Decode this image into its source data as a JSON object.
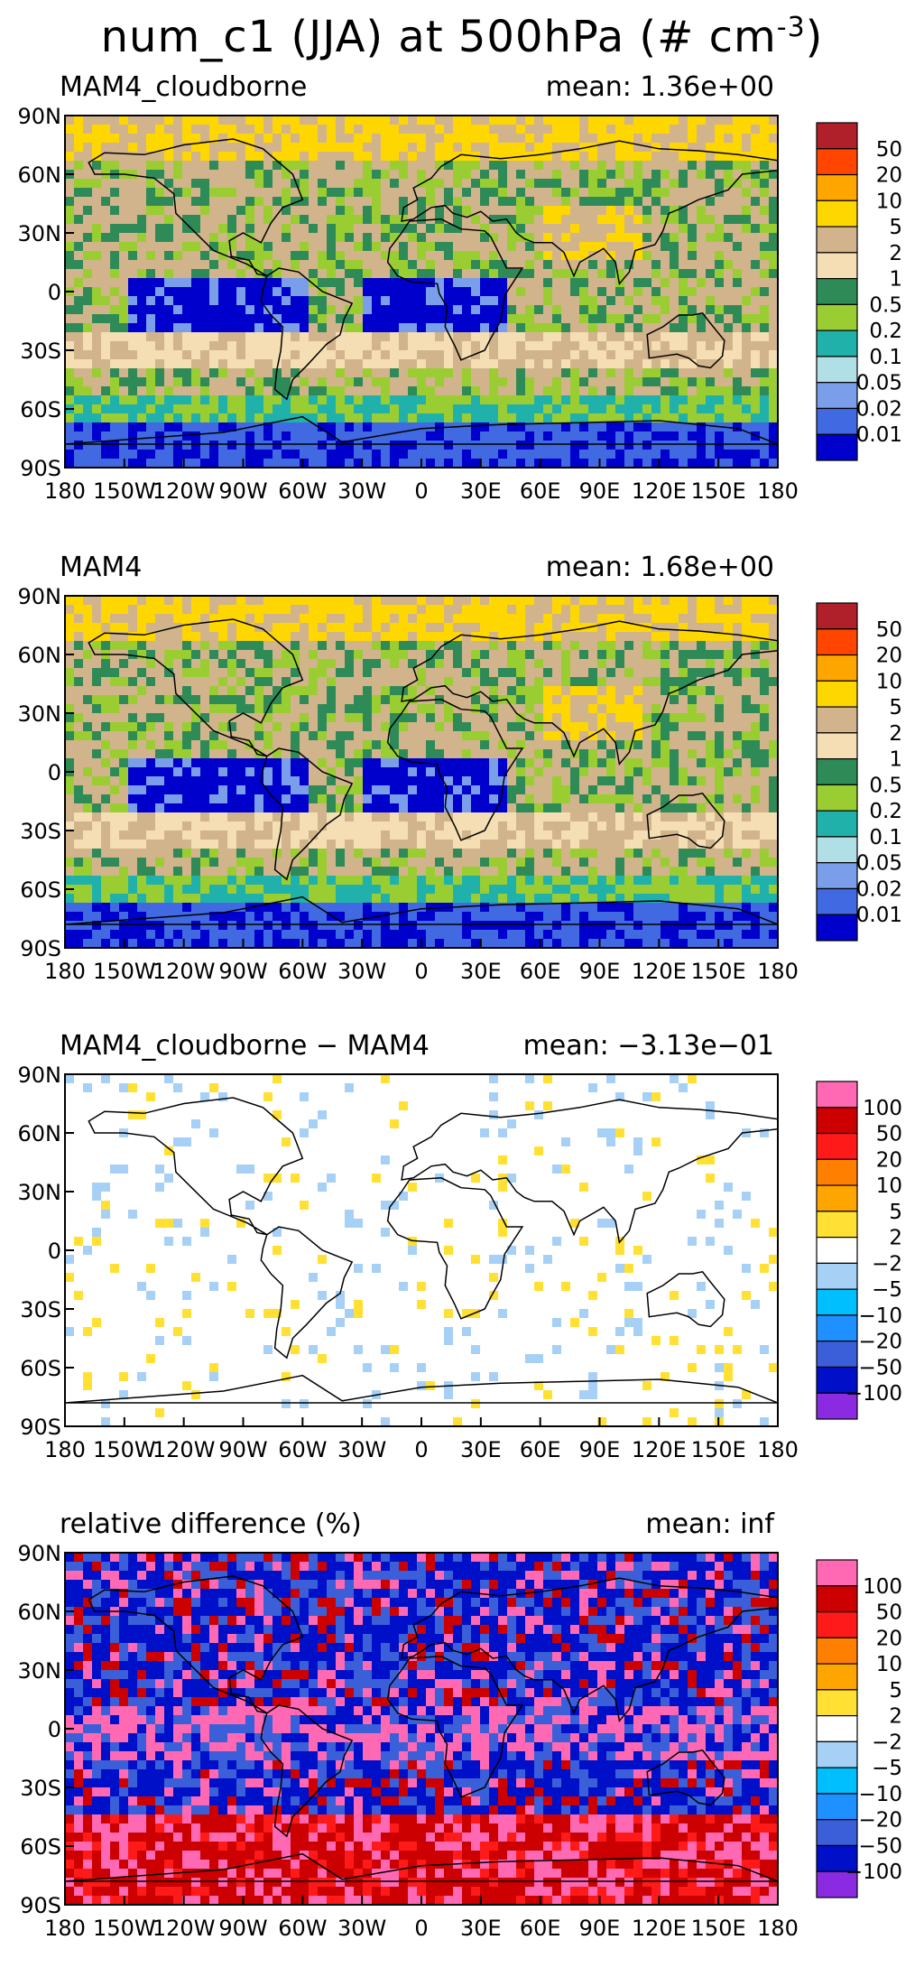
{
  "title": "num_c1 (JJA) at 500hPa (# cm",
  "title_sup": "-3",
  "title_end": ")",
  "chart_data": [
    {
      "type": "heatmap",
      "title": "MAM4_cloudborne",
      "mean_label": "mean:  1.36e+00",
      "yticks": [
        "90N",
        "60N",
        "30N",
        "0",
        "30S",
        "60S",
        "90S"
      ],
      "xticks": [
        "180",
        "150W",
        "120W",
        "90W",
        "60W",
        "30W",
        "0",
        "30E",
        "60E",
        "90E",
        "120E",
        "150E",
        "180"
      ],
      "colorbar_labels": [
        "50",
        "20",
        "10",
        "5",
        "2",
        "1",
        "0.5",
        "0.2",
        "0.1",
        "0.05",
        "0.02",
        "0.01"
      ],
      "colorbar_colors": [
        "#b0202a",
        "#ff4500",
        "#ffa500",
        "#ffd700",
        "#d2b48c",
        "#f5deb3",
        "#2e8b57",
        "#9acd32",
        "#20b2aa",
        "#b0e0e6",
        "#7b9eea",
        "#4169e1",
        "#0000cd"
      ],
      "grid": false
    },
    {
      "type": "heatmap",
      "title": "MAM4",
      "mean_label": "mean:  1.68e+00",
      "yticks": [
        "90N",
        "60N",
        "30N",
        "0",
        "30S",
        "60S",
        "90S"
      ],
      "xticks": [
        "180",
        "150W",
        "120W",
        "90W",
        "60W",
        "30W",
        "0",
        "30E",
        "60E",
        "90E",
        "120E",
        "150E",
        "180"
      ],
      "colorbar_labels": [
        "50",
        "20",
        "10",
        "5",
        "2",
        "1",
        "0.5",
        "0.2",
        "0.1",
        "0.05",
        "0.02",
        "0.01"
      ],
      "colorbar_colors": [
        "#b0202a",
        "#ff4500",
        "#ffa500",
        "#ffd700",
        "#d2b48c",
        "#f5deb3",
        "#2e8b57",
        "#9acd32",
        "#20b2aa",
        "#b0e0e6",
        "#7b9eea",
        "#4169e1",
        "#0000cd"
      ],
      "grid": false
    },
    {
      "type": "heatmap",
      "title": "MAM4_cloudborne − MAM4",
      "mean_label": "mean:  −3.13e−01",
      "yticks": [
        "90N",
        "60N",
        "30N",
        "0",
        "30S",
        "60S",
        "90S"
      ],
      "xticks": [
        "180",
        "150W",
        "120W",
        "90W",
        "60W",
        "30W",
        "0",
        "30E",
        "60E",
        "90E",
        "120E",
        "150E",
        "180"
      ],
      "colorbar_labels": [
        "100",
        "50",
        "20",
        "10",
        "5",
        "2",
        "−2",
        "−5",
        "−10",
        "−20",
        "−50",
        "−100"
      ],
      "colorbar_colors": [
        "#ff69b4",
        "#cc0000",
        "#ff1a1a",
        "#ff7f00",
        "#ffa500",
        "#ffe033",
        "#ffffff",
        "#a6d0f5",
        "#00bfff",
        "#1e90ff",
        "#3a5fd9",
        "#0010c8",
        "#8a2be2"
      ],
      "grid": false
    },
    {
      "type": "heatmap",
      "title": "relative difference (%)",
      "mean_label": "mean:    inf",
      "yticks": [
        "90N",
        "60N",
        "30N",
        "0",
        "30S",
        "60S",
        "90S"
      ],
      "xticks": [
        "180",
        "150W",
        "120W",
        "90W",
        "60W",
        "30W",
        "0",
        "30E",
        "60E",
        "90E",
        "120E",
        "150E",
        "180"
      ],
      "colorbar_labels": [
        "100",
        "50",
        "20",
        "10",
        "5",
        "2",
        "−2",
        "−5",
        "−10",
        "−20",
        "−50",
        "−100"
      ],
      "colorbar_colors": [
        "#ff69b4",
        "#cc0000",
        "#ff1a1a",
        "#ff7f00",
        "#ffa500",
        "#ffe033",
        "#ffffff",
        "#a6d0f5",
        "#00bfff",
        "#1e90ff",
        "#3a5fd9",
        "#0010c8",
        "#8a2be2"
      ],
      "grid": false
    }
  ]
}
